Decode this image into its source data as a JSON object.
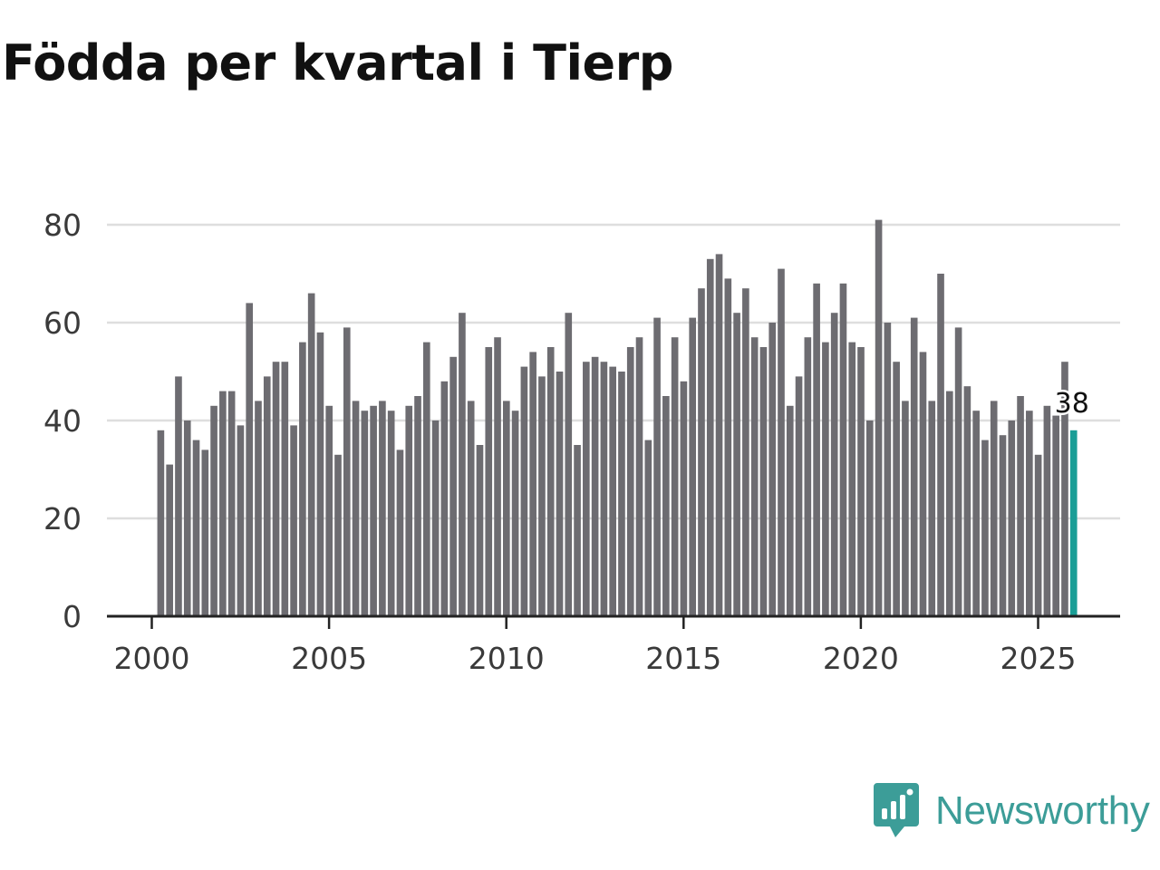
{
  "title": "Födda per kvartal i Tierp",
  "brand": {
    "name": "Newsworthy",
    "icon": "newsworthy-logo-icon",
    "color": "#3c9d98"
  },
  "colors": {
    "bar": "#6d6c71",
    "highlight": "#1a9e96",
    "grid": "#dedede",
    "axis": "#222222"
  },
  "chart_data": {
    "type": "bar",
    "title": "Födda per kvartal i Tierp",
    "xlabel": "",
    "ylabel": "",
    "ylim": [
      0,
      80
    ],
    "yticks": [
      0,
      20,
      40,
      60,
      80
    ],
    "xticks": [
      {
        "value": 2000,
        "label": "2000"
      },
      {
        "value": 2005,
        "label": "2005"
      },
      {
        "value": 2010,
        "label": "2010"
      },
      {
        "value": 2015,
        "label": "2015"
      },
      {
        "value": 2020,
        "label": "2020"
      },
      {
        "value": 2025,
        "label": "2025"
      }
    ],
    "start_year": 2000,
    "periods_per_year": 4,
    "grid": true,
    "values": [
      38,
      31,
      49,
      40,
      36,
      34,
      43,
      46,
      46,
      39,
      64,
      44,
      49,
      52,
      52,
      39,
      56,
      66,
      58,
      43,
      33,
      59,
      44,
      42,
      43,
      44,
      42,
      34,
      43,
      45,
      56,
      40,
      48,
      53,
      62,
      44,
      35,
      55,
      57,
      44,
      42,
      51,
      54,
      49,
      55,
      50,
      62,
      35,
      52,
      53,
      52,
      51,
      50,
      55,
      57,
      36,
      61,
      45,
      57,
      48,
      61,
      67,
      73,
      74,
      69,
      62,
      67,
      57,
      55,
      60,
      71,
      43,
      49,
      57,
      68,
      56,
      62,
      68,
      56,
      55,
      40,
      81,
      60,
      52,
      44,
      61,
      54,
      44,
      70,
      46,
      59,
      47,
      42,
      36,
      44,
      37,
      40,
      45,
      42,
      33,
      43,
      41,
      52,
      38
    ],
    "highlight_last": true,
    "annotation": {
      "label": "38"
    }
  }
}
